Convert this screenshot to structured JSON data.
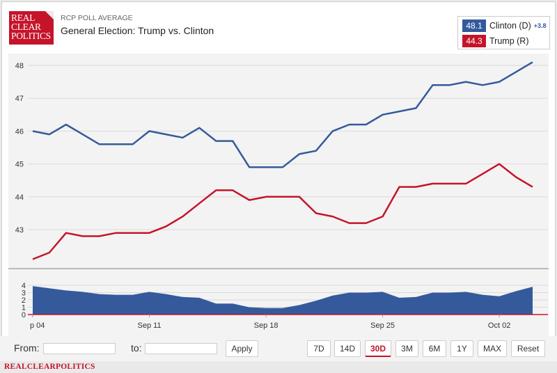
{
  "brand": {
    "logo_lines": [
      "REAL",
      "CLEAR",
      "POLITICS"
    ],
    "footer": "REALCLEARPOLITICS"
  },
  "header": {
    "kicker": "RCP POLL AVERAGE",
    "title": "General Election: Trump vs. Clinton"
  },
  "legend": {
    "items": [
      {
        "value": "48.1",
        "label": "Clinton (D)",
        "spread": "+3.8",
        "color": "#345a9c"
      },
      {
        "value": "44.3",
        "label": "Trump (R)",
        "spread": "",
        "color": "#c5142a"
      }
    ]
  },
  "controls": {
    "from_label": "From:",
    "to_label": "to:",
    "apply_label": "Apply",
    "ranges": [
      "7D",
      "14D",
      "30D",
      "3M",
      "6M",
      "1Y",
      "MAX",
      "Reset"
    ],
    "active_range": "30D"
  },
  "chart_data": {
    "type": "line",
    "title": "General Election: Trump vs. Clinton",
    "x": [
      0,
      1,
      2,
      3,
      4,
      5,
      6,
      7,
      8,
      9,
      10,
      11,
      12,
      13,
      14,
      15,
      16,
      17,
      18,
      19,
      20,
      21,
      22,
      23,
      24,
      25,
      26,
      27,
      28,
      29,
      30
    ],
    "x_tick_labels": [
      {
        "x": 0,
        "label": "p 04"
      },
      {
        "x": 7,
        "label": "Sep 11"
      },
      {
        "x": 14,
        "label": "Sep 18"
      },
      {
        "x": 21,
        "label": "Sep 25"
      },
      {
        "x": 28,
        "label": "Oct 02"
      }
    ],
    "ylim": [
      42,
      48.2
    ],
    "y_ticks": [
      43,
      44,
      45,
      46,
      47,
      48
    ],
    "series": [
      {
        "name": "Clinton (D)",
        "color": "#345a9c",
        "values": [
          46.0,
          45.9,
          46.2,
          45.9,
          45.6,
          45.6,
          45.6,
          46.0,
          45.9,
          45.8,
          46.1,
          45.7,
          45.7,
          44.9,
          44.9,
          44.9,
          45.3,
          45.4,
          46.0,
          46.2,
          46.2,
          46.5,
          46.6,
          46.7,
          47.4,
          47.4,
          47.5,
          47.4,
          47.5,
          47.8,
          48.1
        ]
      },
      {
        "name": "Trump (R)",
        "color": "#c5142a",
        "values": [
          42.1,
          42.3,
          42.9,
          42.8,
          42.8,
          42.9,
          42.9,
          42.9,
          43.1,
          43.4,
          43.8,
          44.2,
          44.2,
          43.9,
          44.0,
          44.0,
          44.0,
          43.5,
          43.4,
          43.2,
          43.2,
          43.4,
          44.3,
          44.3,
          44.4,
          44.4,
          44.4,
          44.7,
          45.0,
          44.6,
          44.3
        ]
      }
    ],
    "spread": {
      "name": "Spread",
      "color": "#345a9c",
      "y_ticks": [
        0,
        1,
        2,
        3,
        4
      ],
      "ylim": [
        0,
        4
      ],
      "values": [
        3.9,
        3.6,
        3.3,
        3.1,
        2.8,
        2.7,
        2.7,
        3.1,
        2.8,
        2.4,
        2.3,
        1.5,
        1.5,
        1.0,
        0.9,
        0.9,
        1.3,
        1.9,
        2.6,
        3.0,
        3.0,
        3.1,
        2.3,
        2.4,
        3.0,
        3.0,
        3.1,
        2.7,
        2.5,
        3.2,
        3.8
      ]
    }
  }
}
